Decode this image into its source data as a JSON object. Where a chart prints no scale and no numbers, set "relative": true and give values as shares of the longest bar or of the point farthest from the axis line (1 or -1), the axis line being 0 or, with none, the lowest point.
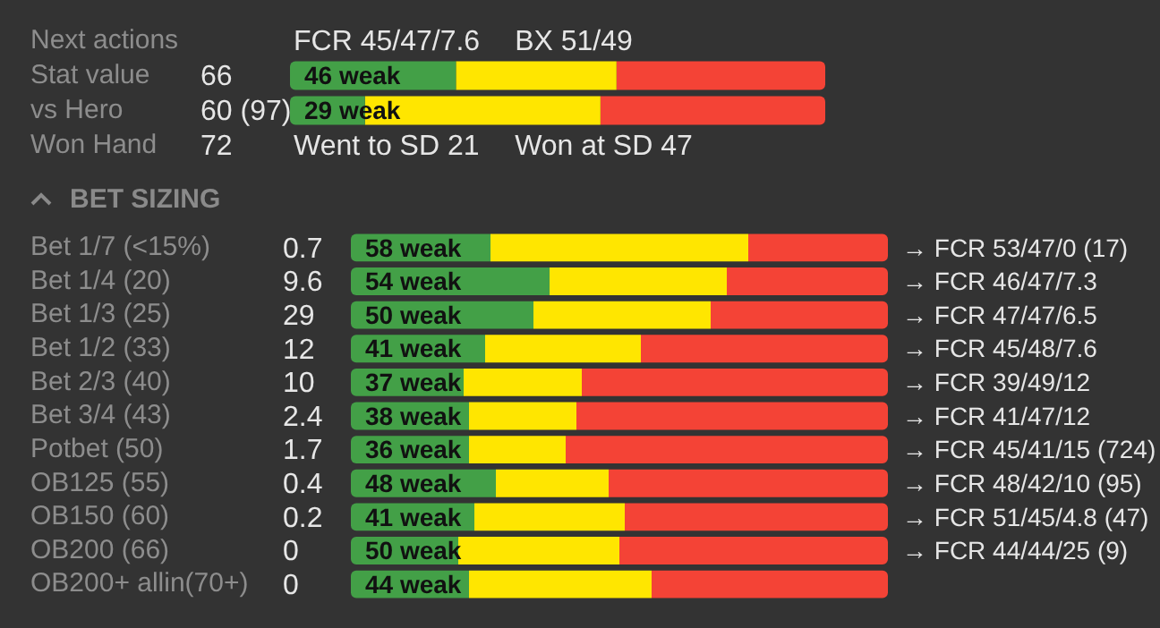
{
  "chart_data": [
    {
      "type": "bar",
      "orientation": "horizontal",
      "stacked": true,
      "relative": true,
      "legend": false,
      "grid": false,
      "categories": [
        "Next actions",
        "Stat value",
        "vs Hero",
        "Won Hand"
      ],
      "series": [
        {
          "color": "#43a047",
          "values": [
            null,
            0.31,
            0.14,
            null
          ]
        },
        {
          "color": "#ffe600",
          "values": [
            null,
            0.3,
            0.44,
            null
          ]
        },
        {
          "color": "#f44336",
          "values": [
            null,
            0.39,
            0.42,
            null
          ]
        }
      ],
      "annotations": [
        "FCR 45/47/7.6",
        "BX 51/49",
        "66",
        "60 (97)",
        "72",
        "46 weak",
        "29 weak",
        "Went to SD 21",
        "Won at SD 47"
      ]
    },
    {
      "type": "bar",
      "orientation": "horizontal",
      "stacked": true,
      "relative": true,
      "legend": false,
      "grid": false,
      "title": "BET SIZING",
      "categories": [
        "Bet 1/7 (<15%)",
        "Bet 1/4 (20)",
        "Bet 1/3 (25)",
        "Bet 1/2 (33)",
        "Bet 2/3 (40)",
        "Bet 3/4 (43)",
        "Potbet (50)",
        "OB125 (55)",
        "OB150 (60)",
        "OB200 (66)",
        "OB200+ allin(70+)"
      ],
      "series": [
        {
          "color": "#43a047",
          "values": [
            0.26,
            0.37,
            0.34,
            0.25,
            0.21,
            0.22,
            0.22,
            0.27,
            0.23,
            0.2,
            0.22
          ]
        },
        {
          "color": "#ffe600",
          "values": [
            0.48,
            0.33,
            0.33,
            0.29,
            0.22,
            0.2,
            0.18,
            0.21,
            0.28,
            0.3,
            0.34
          ]
        },
        {
          "color": "#f44336",
          "values": [
            0.26,
            0.3,
            0.33,
            0.46,
            0.57,
            0.58,
            0.6,
            0.52,
            0.49,
            0.5,
            0.44
          ]
        }
      ],
      "annotations": [
        "0.7",
        "9.6",
        "29",
        "12",
        "10",
        "2.4",
        "1.7",
        "0.4",
        "0.2",
        "0",
        "0",
        "58 weak",
        "54 weak",
        "50 weak",
        "41 weak",
        "37 weak",
        "38 weak",
        "36 weak",
        "48 weak",
        "41 weak",
        "50 weak",
        "44 weak",
        "→ FCR 53/47/0 (17)",
        "→ FCR 46/47/7.3",
        "→ FCR 47/47/6.5",
        "→ FCR 45/48/7.6",
        "→ FCR 39/49/12",
        "→ FCR 41/47/12",
        "→ FCR 45/41/15 (724)",
        "→ FCR 48/42/10 (95)",
        "→ FCR 51/45/4.8 (47)",
        "→ FCR 44/44/25 (9)"
      ]
    }
  ]
}
